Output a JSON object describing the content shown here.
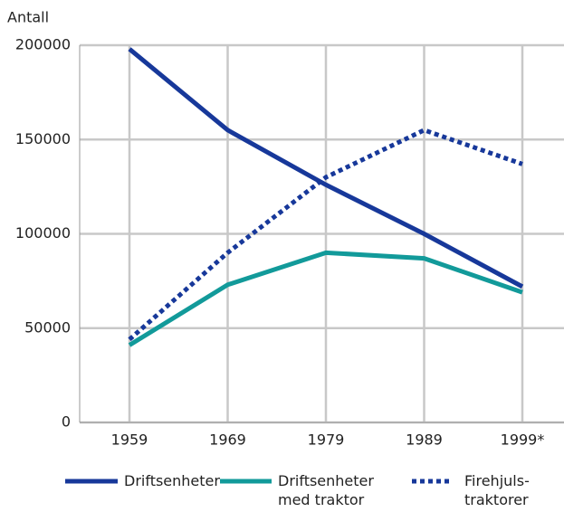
{
  "chart_data": {
    "type": "line",
    "y_label": "Antall",
    "categories": [
      "1959",
      "1969",
      "1979",
      "1989",
      "1999*"
    ],
    "series": [
      {
        "name": "Driftsenheter",
        "color": "#17389a",
        "line_style": "solid",
        "values": [
          198000,
          155000,
          126000,
          100000,
          72000
        ]
      },
      {
        "name": "Driftsenheter\nmed traktor",
        "color": "#129a9a",
        "line_style": "solid",
        "values": [
          41000,
          73000,
          90000,
          87000,
          69000
        ]
      },
      {
        "name": "Firehjuls-\ntraktorer",
        "color": "#17389a",
        "line_style": "dotted",
        "values": [
          44000,
          90000,
          130000,
          155000,
          137000
        ]
      }
    ],
    "ylim": [
      0,
      200000
    ],
    "yticks": [
      0,
      50000,
      100000,
      150000,
      200000
    ],
    "grid": true
  }
}
